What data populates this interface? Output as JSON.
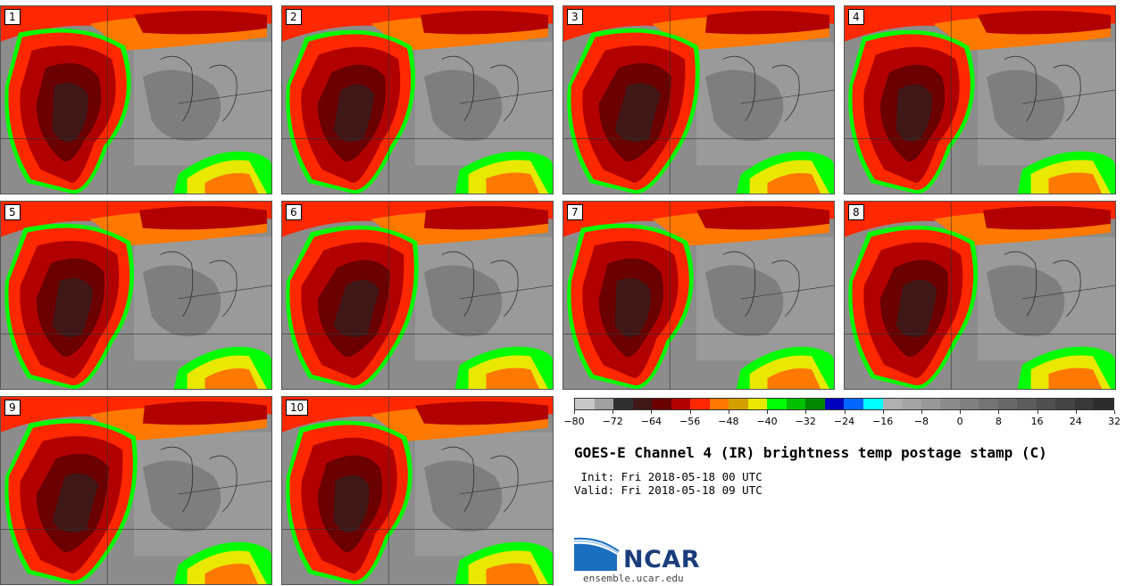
{
  "panels": [
    "1",
    "2",
    "3",
    "4",
    "5",
    "6",
    "7",
    "8",
    "9",
    "10"
  ],
  "colorbar": {
    "colors": [
      "#c8c8c8",
      "#a0a0a0",
      "#303030",
      "#401818",
      "#6a0000",
      "#b20000",
      "#ff2800",
      "#ff7800",
      "#d4a000",
      "#e8e800",
      "#00ff00",
      "#00c000",
      "#008800",
      "#0000c0",
      "#0066ff",
      "#00ffff",
      "#b0b0b0",
      "#a4a4a4",
      "#989898",
      "#8c8c8c",
      "#808080",
      "#747474",
      "#686868",
      "#5c5c5c",
      "#505050",
      "#444444",
      "#383838",
      "#2c2c2c"
    ],
    "ticks": [
      "−80",
      "−72",
      "−64",
      "−56",
      "−48",
      "−40",
      "−32",
      "−24",
      "−16",
      "−8",
      "0",
      "8",
      "16",
      "24",
      "32"
    ]
  },
  "title": "GOES-E Channel 4 (IR) brightness temp postage stamp (C)",
  "init": " Init: Fri 2018-05-18 00 UTC",
  "valid": "Valid: Fri 2018-05-18 09 UTC",
  "logo_text": "NCAR",
  "url": "ensemble.ucar.edu"
}
